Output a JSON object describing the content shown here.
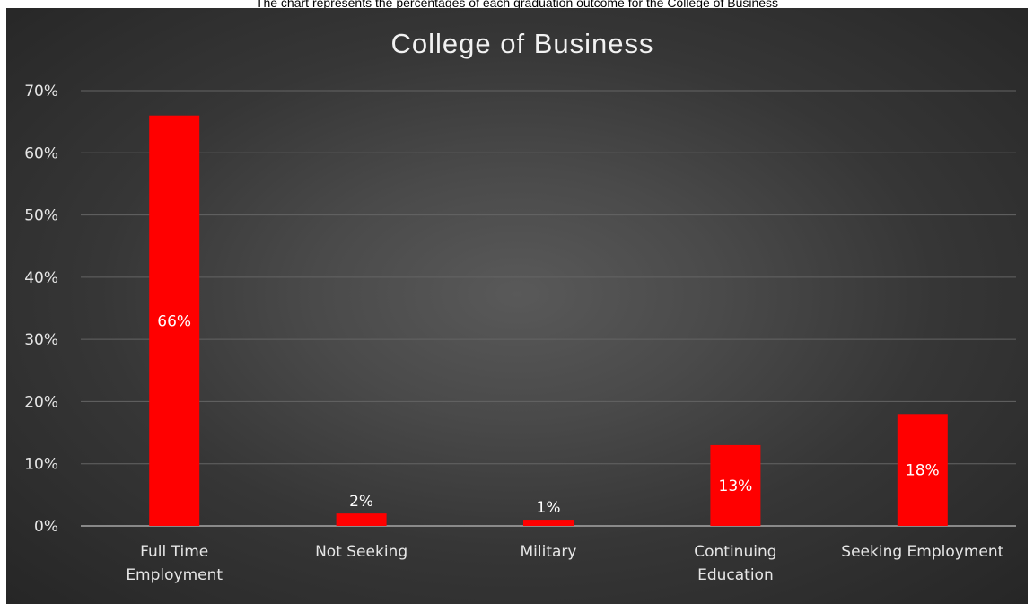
{
  "caption": "The chart represents the percentages of each graduation outcome for the College of Business",
  "colors": {
    "bar": "#ff0000",
    "background": "#404040",
    "text": "#e6e6e6"
  },
  "chart_data": {
    "type": "bar",
    "title": "College of Business",
    "xlabel": "",
    "ylabel": "",
    "categories": [
      "Full Time Employment",
      "Not Seeking",
      "Military",
      "Continuing Education",
      "Seeking Employment"
    ],
    "category_lines": [
      [
        "Full Time",
        "Employment"
      ],
      [
        "Not Seeking"
      ],
      [
        "Military"
      ],
      [
        "Continuing",
        "Education"
      ],
      [
        "Seeking Employment"
      ]
    ],
    "values": [
      66,
      2,
      1,
      13,
      18
    ],
    "data_labels": [
      "66%",
      "2%",
      "1%",
      "13%",
      "18%"
    ],
    "yticks": [
      "0%",
      "10%",
      "20%",
      "30%",
      "40%",
      "50%",
      "60%",
      "70%"
    ],
    "ylim": [
      0,
      70
    ],
    "grid": true,
    "legend": "none"
  }
}
